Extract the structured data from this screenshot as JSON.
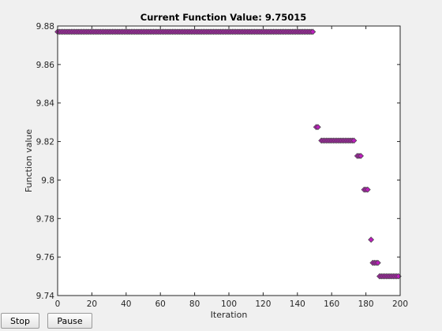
{
  "chart_data": {
    "type": "scatter",
    "title": "Current Function Value: 9.75015",
    "xlabel": "Iteration",
    "ylabel": "Function value",
    "xlim": [
      0,
      200
    ],
    "ylim": [
      9.74,
      9.88
    ],
    "xticks": [
      "0",
      "20",
      "40",
      "60",
      "80",
      "100",
      "120",
      "140",
      "160",
      "180",
      "200"
    ],
    "yticks": [
      "9.74",
      "9.76",
      "9.78",
      "9.8",
      "9.82",
      "9.84",
      "9.86",
      "9.88"
    ],
    "grid": false,
    "marker_color": "#bd1fbd",
    "marker_edge": "#404040",
    "points": [
      [
        0,
        9.877
      ],
      [
        1,
        9.877
      ],
      [
        2,
        9.877
      ],
      [
        3,
        9.877
      ],
      [
        4,
        9.877
      ],
      [
        5,
        9.877
      ],
      [
        6,
        9.877
      ],
      [
        7,
        9.877
      ],
      [
        8,
        9.877
      ],
      [
        9,
        9.877
      ],
      [
        10,
        9.877
      ],
      [
        11,
        9.877
      ],
      [
        12,
        9.877
      ],
      [
        13,
        9.877
      ],
      [
        14,
        9.877
      ],
      [
        15,
        9.877
      ],
      [
        16,
        9.877
      ],
      [
        17,
        9.877
      ],
      [
        18,
        9.877
      ],
      [
        19,
        9.877
      ],
      [
        20,
        9.877
      ],
      [
        21,
        9.877
      ],
      [
        22,
        9.877
      ],
      [
        23,
        9.877
      ],
      [
        24,
        9.877
      ],
      [
        25,
        9.877
      ],
      [
        26,
        9.877
      ],
      [
        27,
        9.877
      ],
      [
        28,
        9.877
      ],
      [
        29,
        9.877
      ],
      [
        30,
        9.877
      ],
      [
        31,
        9.877
      ],
      [
        32,
        9.877
      ],
      [
        33,
        9.877
      ],
      [
        34,
        9.877
      ],
      [
        35,
        9.877
      ],
      [
        36,
        9.877
      ],
      [
        37,
        9.877
      ],
      [
        38,
        9.877
      ],
      [
        39,
        9.877
      ],
      [
        40,
        9.877
      ],
      [
        41,
        9.877
      ],
      [
        42,
        9.877
      ],
      [
        43,
        9.877
      ],
      [
        44,
        9.877
      ],
      [
        45,
        9.877
      ],
      [
        46,
        9.877
      ],
      [
        47,
        9.877
      ],
      [
        48,
        9.877
      ],
      [
        49,
        9.877
      ],
      [
        50,
        9.877
      ],
      [
        51,
        9.877
      ],
      [
        52,
        9.877
      ],
      [
        53,
        9.877
      ],
      [
        54,
        9.877
      ],
      [
        55,
        9.877
      ],
      [
        56,
        9.877
      ],
      [
        57,
        9.877
      ],
      [
        58,
        9.877
      ],
      [
        59,
        9.877
      ],
      [
        60,
        9.877
      ],
      [
        61,
        9.877
      ],
      [
        62,
        9.877
      ],
      [
        63,
        9.877
      ],
      [
        64,
        9.877
      ],
      [
        65,
        9.877
      ],
      [
        66,
        9.877
      ],
      [
        67,
        9.877
      ],
      [
        68,
        9.877
      ],
      [
        69,
        9.877
      ],
      [
        70,
        9.877
      ],
      [
        71,
        9.877
      ],
      [
        72,
        9.877
      ],
      [
        73,
        9.877
      ],
      [
        74,
        9.877
      ],
      [
        75,
        9.877
      ],
      [
        76,
        9.877
      ],
      [
        77,
        9.877
      ],
      [
        78,
        9.877
      ],
      [
        79,
        9.877
      ],
      [
        80,
        9.877
      ],
      [
        81,
        9.877
      ],
      [
        82,
        9.877
      ],
      [
        83,
        9.877
      ],
      [
        84,
        9.877
      ],
      [
        85,
        9.877
      ],
      [
        86,
        9.877
      ],
      [
        87,
        9.877
      ],
      [
        88,
        9.877
      ],
      [
        89,
        9.877
      ],
      [
        90,
        9.877
      ],
      [
        91,
        9.877
      ],
      [
        92,
        9.877
      ],
      [
        93,
        9.877
      ],
      [
        94,
        9.877
      ],
      [
        95,
        9.877
      ],
      [
        96,
        9.877
      ],
      [
        97,
        9.877
      ],
      [
        98,
        9.877
      ],
      [
        99,
        9.877
      ],
      [
        100,
        9.877
      ],
      [
        101,
        9.877
      ],
      [
        102,
        9.877
      ],
      [
        103,
        9.877
      ],
      [
        104,
        9.877
      ],
      [
        105,
        9.877
      ],
      [
        106,
        9.877
      ],
      [
        107,
        9.877
      ],
      [
        108,
        9.877
      ],
      [
        109,
        9.877
      ],
      [
        110,
        9.877
      ],
      [
        111,
        9.877
      ],
      [
        112,
        9.877
      ],
      [
        113,
        9.877
      ],
      [
        114,
        9.877
      ],
      [
        115,
        9.877
      ],
      [
        116,
        9.877
      ],
      [
        117,
        9.877
      ],
      [
        118,
        9.877
      ],
      [
        119,
        9.877
      ],
      [
        120,
        9.877
      ],
      [
        121,
        9.877
      ],
      [
        122,
        9.877
      ],
      [
        123,
        9.877
      ],
      [
        124,
        9.877
      ],
      [
        125,
        9.877
      ],
      [
        126,
        9.877
      ],
      [
        127,
        9.877
      ],
      [
        128,
        9.877
      ],
      [
        129,
        9.877
      ],
      [
        130,
        9.877
      ],
      [
        131,
        9.877
      ],
      [
        132,
        9.877
      ],
      [
        133,
        9.877
      ],
      [
        134,
        9.877
      ],
      [
        135,
        9.877
      ],
      [
        136,
        9.877
      ],
      [
        137,
        9.877
      ],
      [
        138,
        9.877
      ],
      [
        139,
        9.877
      ],
      [
        140,
        9.877
      ],
      [
        141,
        9.877
      ],
      [
        142,
        9.877
      ],
      [
        143,
        9.877
      ],
      [
        144,
        9.877
      ],
      [
        145,
        9.877
      ],
      [
        146,
        9.877
      ],
      [
        147,
        9.877
      ],
      [
        148,
        9.877
      ],
      [
        149,
        9.877
      ],
      [
        151,
        9.8275
      ],
      [
        152,
        9.8275
      ],
      [
        154,
        9.8205
      ],
      [
        155,
        9.8205
      ],
      [
        156,
        9.8205
      ],
      [
        157,
        9.8205
      ],
      [
        158,
        9.8205
      ],
      [
        159,
        9.8205
      ],
      [
        160,
        9.8205
      ],
      [
        161,
        9.8205
      ],
      [
        162,
        9.8205
      ],
      [
        163,
        9.8205
      ],
      [
        164,
        9.8205
      ],
      [
        165,
        9.8205
      ],
      [
        166,
        9.8205
      ],
      [
        167,
        9.8205
      ],
      [
        168,
        9.8205
      ],
      [
        169,
        9.8205
      ],
      [
        170,
        9.8205
      ],
      [
        171,
        9.8205
      ],
      [
        172,
        9.8205
      ],
      [
        173,
        9.8205
      ],
      [
        175,
        9.8125
      ],
      [
        176,
        9.8125
      ],
      [
        177,
        9.8125
      ],
      [
        179,
        9.795
      ],
      [
        180,
        9.795
      ],
      [
        181,
        9.795
      ],
      [
        183,
        9.769
      ],
      [
        184,
        9.757
      ],
      [
        185,
        9.757
      ],
      [
        186,
        9.757
      ],
      [
        187,
        9.757
      ],
      [
        188,
        9.75
      ],
      [
        189,
        9.75
      ],
      [
        190,
        9.75
      ],
      [
        191,
        9.75
      ],
      [
        192,
        9.75
      ],
      [
        193,
        9.75
      ],
      [
        194,
        9.75
      ],
      [
        195,
        9.75
      ],
      [
        196,
        9.75
      ],
      [
        197,
        9.75
      ],
      [
        198,
        9.75
      ],
      [
        199,
        9.75
      ]
    ]
  },
  "controls": {
    "stop_label": "Stop",
    "pause_label": "Pause"
  }
}
